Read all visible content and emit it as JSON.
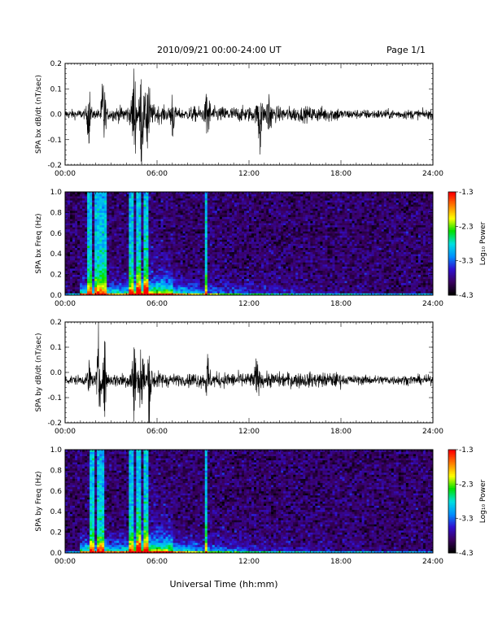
{
  "header": {
    "date_range": "2010/09/21  00:00-24:00 UT",
    "page": "Page 1/1"
  },
  "xlabel": "Universal Time (hh:mm)",
  "x_ticks": [
    "00:00",
    "06:00",
    "12:00",
    "18:00",
    "24:00"
  ],
  "colorbar": {
    "label": "Log₁₀ Power",
    "ticks": [
      "-1.3",
      "-2.3",
      "-3.3",
      "-4.3"
    ],
    "range": [
      -4.3,
      -1.3
    ],
    "colormap": [
      "#000000",
      "#3a0060",
      "#3010d0",
      "#0090ff",
      "#00e0e0",
      "#00e000",
      "#ffff00",
      "#ff8000",
      "#ff0000"
    ]
  },
  "chart_data": [
    {
      "type": "line",
      "ylabel": "SPA bx dB/dt (nT/sec)",
      "y_ticks": [
        "0.2",
        "0.1",
        "0.0",
        "-0.1",
        "-0.2"
      ],
      "ylim": [
        -0.2,
        0.2
      ],
      "xlim_hours": [
        0,
        24
      ],
      "series_color": "#000000",
      "baseline": 0.0,
      "noise_amplitude": 0.02,
      "bursts": [
        {
          "t": 1.55,
          "amp": 0.12
        },
        {
          "t": 2.5,
          "amp": 0.2
        },
        {
          "t": 4.5,
          "amp": 0.2
        },
        {
          "t": 5.0,
          "amp": 0.2
        },
        {
          "t": 5.4,
          "amp": 0.18
        },
        {
          "t": 7.0,
          "amp": 0.1
        },
        {
          "t": 9.3,
          "amp": 0.13
        },
        {
          "t": 12.7,
          "amp": 0.2
        },
        {
          "t": 13.3,
          "amp": 0.13
        }
      ]
    },
    {
      "type": "heatmap",
      "ylabel": "SPA bx Freq (Hz)",
      "y_ticks": [
        "1.0",
        "0.8",
        "0.6",
        "0.4",
        "0.2",
        "0.0"
      ],
      "ylim": [
        0,
        1.0
      ],
      "xlim_hours": [
        0,
        24
      ],
      "value_range": [
        -4.3,
        -1.3
      ],
      "background_level": -3.9,
      "vertical_lines_hours": [
        1.6,
        2.1,
        2.4,
        2.65,
        4.3,
        4.8,
        5.3,
        9.2
      ],
      "lowfreq_enhancement": "strong 01:00-07:00, decaying toward 18:00"
    },
    {
      "type": "line",
      "ylabel": "SPA by dB/dt (nT/sec)",
      "y_ticks": [
        "0.2",
        "0.1",
        "0.0",
        "-0.1",
        "-0.2"
      ],
      "ylim": [
        -0.2,
        0.2
      ],
      "xlim_hours": [
        0,
        24
      ],
      "series_color": "#000000",
      "baseline": -0.03,
      "noise_amplitude": 0.02,
      "bursts": [
        {
          "t": 1.6,
          "amp": 0.08
        },
        {
          "t": 2.2,
          "amp": 0.2
        },
        {
          "t": 2.6,
          "amp": 0.15
        },
        {
          "t": 4.5,
          "amp": 0.2
        },
        {
          "t": 5.0,
          "amp": 0.2
        },
        {
          "t": 5.5,
          "amp": 0.16
        },
        {
          "t": 9.3,
          "amp": 0.1
        },
        {
          "t": 12.5,
          "amp": 0.08
        }
      ]
    },
    {
      "type": "heatmap",
      "ylabel": "SPA by Freq (Hz)",
      "y_ticks": [
        "1.0",
        "0.8",
        "0.6",
        "0.4",
        "0.2",
        "0.0"
      ],
      "ylim": [
        0,
        1.0
      ],
      "xlim_hours": [
        0,
        24
      ],
      "value_range": [
        -4.3,
        -1.3
      ],
      "background_level": -3.9,
      "vertical_lines_hours": [
        1.8,
        2.2,
        2.5,
        4.3,
        4.8,
        5.3,
        9.2
      ],
      "lowfreq_enhancement": "strong 01:30-07:00, decaying toward 18:00"
    }
  ]
}
